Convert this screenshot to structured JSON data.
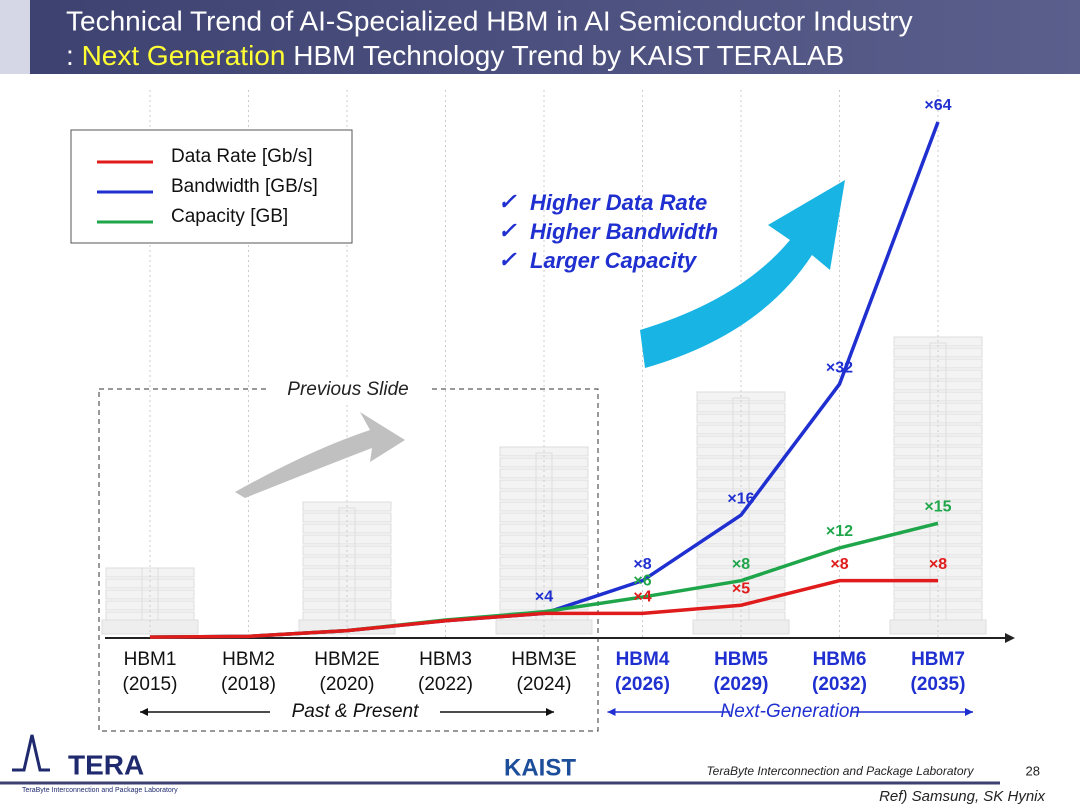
{
  "header": {
    "title_line1": "Technical Trend of AI-Specialized HBM in AI Semiconductor Industry",
    "title_line2_prefix": ":",
    "title_line2_highlight": "Next Generation",
    "title_line2_rest": "HBM Technology Trend by KAIST TERALAB"
  },
  "bullets": [
    "Higher Data Rate",
    "Higher Bandwidth",
    "Larger Capacity"
  ],
  "previous_slide_label": "Previous Slide",
  "chart_data": {
    "type": "line",
    "categories": [
      "HBM1",
      "HBM2",
      "HBM2E",
      "HBM3",
      "HBM3E",
      "HBM4",
      "HBM5",
      "HBM6",
      "HBM7"
    ],
    "years": [
      "(2015)",
      "(2018)",
      "(2020)",
      "(2022)",
      "(2024)",
      "(2026)",
      "(2029)",
      "(2032)",
      "(2035)"
    ],
    "groups": [
      {
        "label": "Past & Present",
        "count": 5,
        "color": "#111111"
      },
      {
        "label": "Next-Generation",
        "count": 4,
        "color": "#1f2fd0"
      }
    ],
    "ylim": [
      1,
      64
    ],
    "series": [
      {
        "name": "Data Rate [Gb/s]",
        "color": "#e01b1b",
        "values": [
          1.1,
          1.2,
          1.9,
          3.1,
          4,
          4,
          5,
          8,
          8
        ],
        "value_labels": [
          null,
          null,
          null,
          null,
          null,
          "×4",
          "×5",
          "×8",
          "×8"
        ]
      },
      {
        "name": "Bandwidth [GB/s]",
        "color": "#1f2fd0",
        "values": [
          1.1,
          1.2,
          1.9,
          3.1,
          4,
          8,
          16,
          32,
          64
        ],
        "value_labels": [
          null,
          null,
          null,
          null,
          "×4",
          "×8",
          "×16",
          "×32",
          "×64"
        ]
      },
      {
        "name": "Capacity [GB]",
        "color": "#1fa64a",
        "values": [
          1.1,
          1.2,
          1.9,
          3.2,
          4.2,
          6,
          8,
          12,
          15
        ],
        "value_labels": [
          null,
          null,
          null,
          null,
          null,
          "×6",
          "×8",
          "×12",
          "×15"
        ]
      }
    ]
  },
  "footer": {
    "logo": "TERA",
    "logo_sub": "TeraByte Interconnection and Package Laboratory",
    "kaist": "KAIST",
    "lab": "TeraByte Interconnection and Package Laboratory",
    "page": "28",
    "ref": "Ref) Samsung, SK Hynix"
  }
}
